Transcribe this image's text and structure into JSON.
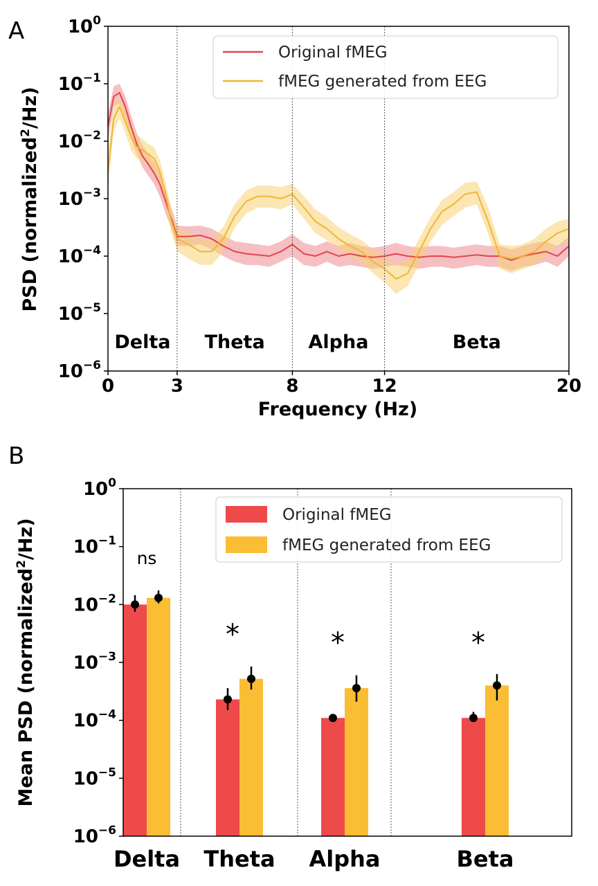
{
  "colors": {
    "original": "#e3444e",
    "original_fill": "#ee8a90",
    "generated": "#f0b733",
    "generated_fill": "#f7d277",
    "bar_original": "#ee4a4a",
    "bar_generated": "#fbbd33"
  },
  "panel_a": {
    "letter": "A",
    "xlabel": "Frequency (Hz)",
    "ylabel_main": "PSD (normalized",
    "ylabel_sup": "2",
    "ylabel_tail": "/Hz)",
    "legend": [
      "Original fMEG",
      "fMEG generated from EEG"
    ],
    "band_labels": [
      "Delta",
      "Theta",
      "Alpha",
      "Beta"
    ],
    "xtick_labels": [
      "0",
      "3",
      "8",
      "12",
      "20"
    ],
    "ytick_exponents": [
      "0",
      "−1",
      "−2",
      "−3",
      "−4",
      "−5",
      "−6"
    ],
    "ytick_base": "10"
  },
  "panel_b": {
    "letter": "B",
    "ylabel_main": "Mean PSD (normalized",
    "ylabel_sup": "2",
    "ylabel_tail": "/Hz)",
    "legend": [
      "Original fMEG",
      "fMEG generated from EEG"
    ],
    "ytick_exponents": [
      "0",
      "−1",
      "−2",
      "−3",
      "−4",
      "−5",
      "−6"
    ],
    "ytick_base": "10",
    "annotations": [
      "ns",
      "*",
      "*",
      "*"
    ]
  },
  "chart_data": [
    {
      "type": "line",
      "log_y": true,
      "xlim": [
        0,
        20
      ],
      "ylim": [
        1e-06,
        1
      ],
      "xticks": [
        0,
        3,
        8,
        12,
        20
      ],
      "band_boundaries": [
        3,
        8,
        12
      ],
      "bands": [
        "Delta",
        "Theta",
        "Alpha",
        "Beta"
      ],
      "legend_position": "top-right",
      "grid": false,
      "series": [
        {
          "name": "Original fMEG",
          "x": [
            0,
            0.25,
            0.5,
            0.75,
            1.0,
            1.25,
            1.5,
            1.75,
            2.0,
            2.25,
            2.5,
            2.75,
            3.0,
            3.5,
            4.0,
            4.5,
            5.0,
            5.5,
            6.0,
            6.5,
            7.0,
            7.5,
            8.0,
            8.5,
            9.0,
            9.5,
            10.0,
            10.5,
            11.0,
            11.5,
            12.0,
            12.5,
            13.0,
            13.5,
            14.0,
            14.5,
            15.0,
            15.5,
            16.0,
            16.5,
            17.0,
            17.5,
            18.0,
            18.5,
            19.0,
            19.5,
            20.0
          ],
          "y": [
            0.018,
            0.06,
            0.07,
            0.04,
            0.018,
            0.009,
            0.0055,
            0.004,
            0.0028,
            0.0018,
            0.0009,
            0.00045,
            0.00022,
            0.00022,
            0.00023,
            0.0002,
            0.00015,
            0.00012,
            0.00011,
            0.000105,
            0.0001,
            0.00012,
            0.00016,
            0.00011,
            0.0001,
            0.00012,
            0.0001,
            0.00011,
            0.0001,
            9.5e-05,
            0.0001,
            0.00011,
            0.0001,
            9.5e-05,
            0.0001,
            0.0001,
            9.5e-05,
            0.0001,
            0.000105,
            0.0001,
            0.0001,
            8.5e-05,
            0.0001,
            0.00011,
            0.00012,
            0.0001,
            0.00015
          ],
          "band_lower": [
            0.01,
            0.04,
            0.045,
            0.025,
            0.011,
            0.006,
            0.0035,
            0.0025,
            0.0018,
            0.0011,
            0.00055,
            0.0003,
            0.00015,
            0.00015,
            0.00016,
            0.00013,
            0.0001,
            8e-05,
            7e-05,
            7e-05,
            6.5e-05,
            8e-05,
            0.0001,
            7e-05,
            6.5e-05,
            8e-05,
            6.5e-05,
            7e-05,
            6.5e-05,
            6e-05,
            6.5e-05,
            7e-05,
            6.5e-05,
            6e-05,
            6.5e-05,
            6.5e-05,
            6e-05,
            6.5e-05,
            7e-05,
            6.5e-05,
            6.5e-05,
            5.5e-05,
            6.5e-05,
            7e-05,
            8e-05,
            6.5e-05,
            0.0001
          ],
          "band_upper": [
            0.03,
            0.09,
            0.1,
            0.06,
            0.028,
            0.014,
            0.0085,
            0.006,
            0.0043,
            0.0028,
            0.0014,
            0.0007,
            0.00034,
            0.00033,
            0.00034,
            0.0003,
            0.00023,
            0.00018,
            0.00017,
            0.00016,
            0.00015,
            0.00018,
            0.00024,
            0.00017,
            0.00015,
            0.00018,
            0.00015,
            0.00017,
            0.00015,
            0.00014,
            0.00015,
            0.00017,
            0.00015,
            0.00014,
            0.00015,
            0.00015,
            0.00014,
            0.00015,
            0.00016,
            0.00015,
            0.00015,
            0.00013,
            0.00015,
            0.00017,
            0.00018,
            0.00015,
            0.00022
          ]
        },
        {
          "name": "fMEG generated from EEG",
          "x": [
            0,
            0.25,
            0.5,
            0.75,
            1.0,
            1.25,
            1.5,
            1.75,
            2.0,
            2.25,
            2.5,
            2.75,
            3.0,
            3.5,
            4.0,
            4.5,
            5.0,
            5.5,
            6.0,
            6.5,
            7.0,
            7.5,
            8.0,
            8.5,
            9.0,
            9.5,
            10.0,
            10.5,
            11.0,
            11.5,
            12.0,
            12.5,
            13.0,
            13.5,
            14.0,
            14.5,
            15.0,
            15.5,
            16.0,
            16.5,
            17.0,
            17.5,
            18.0,
            18.5,
            19.0,
            19.5,
            20.0
          ],
          "y": [
            0.003,
            0.025,
            0.04,
            0.022,
            0.012,
            0.008,
            0.007,
            0.006,
            0.005,
            0.003,
            0.0012,
            0.0004,
            0.0002,
            0.00016,
            0.00012,
            0.00012,
            0.0002,
            0.0005,
            0.0009,
            0.0011,
            0.0011,
            0.001,
            0.0012,
            0.0007,
            0.0004,
            0.0003,
            0.0002,
            0.00015,
            0.00012,
            8e-05,
            6e-05,
            4e-05,
            5e-05,
            0.00012,
            0.0003,
            0.0006,
            0.0008,
            0.0012,
            0.0013,
            0.0004,
            0.0001,
            9e-05,
            0.0001,
            0.00012,
            0.00018,
            0.00025,
            0.0003
          ],
          "band_lower": [
            0.0015,
            0.015,
            0.025,
            0.014,
            0.007,
            0.005,
            0.0045,
            0.004,
            0.0032,
            0.0019,
            0.0008,
            0.00026,
            0.00012,
            9e-05,
            7e-05,
            7e-05,
            0.00012,
            0.00031,
            0.00055,
            0.0007,
            0.0007,
            0.00065,
            0.0008,
            0.00045,
            0.00025,
            0.00019,
            0.00013,
            0.0001,
            8e-05,
            5e-05,
            3.5e-05,
            2.2e-05,
            3e-05,
            7e-05,
            0.00018,
            0.00035,
            0.0005,
            0.0007,
            0.0008,
            0.00024,
            6e-05,
            5e-05,
            6e-05,
            7e-05,
            0.0001,
            0.00015,
            0.00018
          ],
          "band_upper": [
            0.006,
            0.045,
            0.06,
            0.035,
            0.02,
            0.013,
            0.011,
            0.009,
            0.0078,
            0.0047,
            0.0019,
            0.00062,
            0.00032,
            0.00026,
            0.0002,
            0.0002,
            0.00032,
            0.0008,
            0.0014,
            0.0017,
            0.0017,
            0.0016,
            0.0018,
            0.0011,
            0.00065,
            0.00048,
            0.00032,
            0.00024,
            0.00019,
            0.00013,
            0.0001,
            7e-05,
            9e-05,
            0.0002,
            0.00048,
            0.00095,
            0.0013,
            0.0019,
            0.002,
            0.0007,
            0.00016,
            0.00015,
            0.00016,
            0.0002,
            0.0003,
            0.0004,
            0.00045
          ]
        }
      ]
    },
    {
      "type": "bar",
      "log_y": true,
      "ylim": [
        1e-06,
        1
      ],
      "categories": [
        "Delta",
        "Theta",
        "Alpha",
        "Beta"
      ],
      "legend_position": "top-right",
      "grid": false,
      "series": [
        {
          "name": "Original fMEG",
          "values": [
            0.01,
            0.00023,
            0.00011,
            0.00011
          ],
          "err_lower": [
            0.0075,
            0.00015,
            9.5e-05,
            9.5e-05
          ],
          "err_upper": [
            0.0145,
            0.00036,
            0.000125,
            0.00014
          ]
        },
        {
          "name": "fMEG generated from EEG",
          "values": [
            0.013,
            0.00052,
            0.00036,
            0.0004
          ],
          "err_lower": [
            0.0105,
            0.00034,
            0.00021,
            0.00022
          ],
          "err_upper": [
            0.0175,
            0.00085,
            0.0006,
            0.00063
          ]
        }
      ],
      "annotations": [
        "ns",
        "*",
        "*",
        "*"
      ]
    }
  ]
}
